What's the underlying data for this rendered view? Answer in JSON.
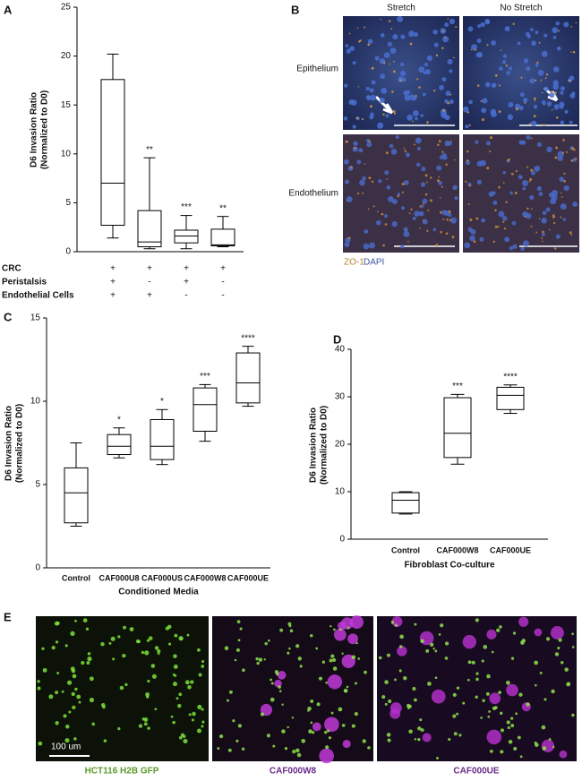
{
  "chart_data": [
    {
      "type": "box",
      "panel": "A",
      "y_label": [
        "D6 Invasion Ratio",
        "(Normalized to D0)"
      ],
      "ylim": [
        0,
        25
      ],
      "yticks": [
        0,
        5,
        10,
        15,
        20,
        25
      ],
      "categories": [
        null,
        null,
        null,
        null
      ],
      "boxes": [
        {
          "min": 1.4,
          "q1": 2.7,
          "median": 7.0,
          "q3": 17.6,
          "max": 20.2
        },
        {
          "min": 0.3,
          "q1": 0.5,
          "median": 1.0,
          "q3": 4.2,
          "max": 9.6,
          "annotation": "**"
        },
        {
          "min": 0.3,
          "q1": 0.9,
          "median": 1.6,
          "q3": 2.2,
          "max": 3.7,
          "annotation": "***"
        },
        {
          "min": 0.5,
          "q1": 0.6,
          "median": 0.7,
          "q3": 2.3,
          "max": 3.6,
          "annotation": "**"
        }
      ],
      "conditions": [
        {
          "label": "CRC",
          "signs": [
            "+",
            "+",
            "+",
            "+"
          ]
        },
        {
          "label": "Peristalsis",
          "signs": [
            "+",
            "-",
            "+",
            "-"
          ]
        },
        {
          "label": "Endothelial Cells",
          "signs": [
            "+",
            "+",
            "-",
            "-"
          ]
        }
      ]
    },
    {
      "type": "box",
      "panel": "C",
      "y_label": [
        "D6 Invasion Ratio",
        "(Normalized to D0)"
      ],
      "x_label": "Conditioned Media",
      "ylim": [
        0,
        15
      ],
      "yticks": [
        0,
        5,
        10,
        15
      ],
      "categories": [
        "Control",
        "CAF000U8",
        "CAF000US",
        "CAF000W8",
        "CAF000UE"
      ],
      "boxes": [
        {
          "min": 2.5,
          "q1": 2.7,
          "median": 4.5,
          "q3": 6.0,
          "max": 7.5
        },
        {
          "min": 6.6,
          "q1": 6.8,
          "median": 7.3,
          "q3": 8.0,
          "max": 8.4,
          "annotation": "*"
        },
        {
          "min": 6.2,
          "q1": 6.5,
          "median": 7.3,
          "q3": 8.9,
          "max": 9.5,
          "annotation": "*"
        },
        {
          "min": 7.6,
          "q1": 8.2,
          "median": 9.8,
          "q3": 10.8,
          "max": 11.0,
          "annotation": "***"
        },
        {
          "min": 9.7,
          "q1": 9.9,
          "median": 11.1,
          "q3": 12.9,
          "max": 13.3,
          "annotation": "****"
        }
      ]
    },
    {
      "type": "box",
      "panel": "D",
      "y_label": [
        "D6 Invasion Ratio",
        "(Normalized to D0)"
      ],
      "x_label": "Fibroblast Co-culture",
      "ylim": [
        0,
        40
      ],
      "yticks": [
        0,
        10,
        20,
        30,
        40
      ],
      "categories": [
        "Control",
        "CAF000W8",
        "CAF000UE"
      ],
      "boxes": [
        {
          "min": 5.3,
          "q1": 5.5,
          "median": 8.2,
          "q3": 9.8,
          "max": 10.0
        },
        {
          "min": 15.8,
          "q1": 17.2,
          "median": 22.3,
          "q3": 29.8,
          "max": 30.5,
          "annotation": "***"
        },
        {
          "min": 26.5,
          "q1": 27.3,
          "median": 30.3,
          "q3": 32.0,
          "max": 32.5,
          "annotation": "****"
        }
      ]
    }
  ],
  "panel_b": {
    "panel": "B",
    "columns": [
      "Stretch",
      "No Stretch"
    ],
    "rows": [
      "Epithelium",
      "Endothelium"
    ],
    "stain_1": "ZO-1",
    "stain_2": "DAPI"
  },
  "panel_e": {
    "panel": "E",
    "captions": [
      "HCT116 H2B GFP",
      "CAF000W8",
      "CAF000UE"
    ],
    "scale_bar": "100 um"
  }
}
